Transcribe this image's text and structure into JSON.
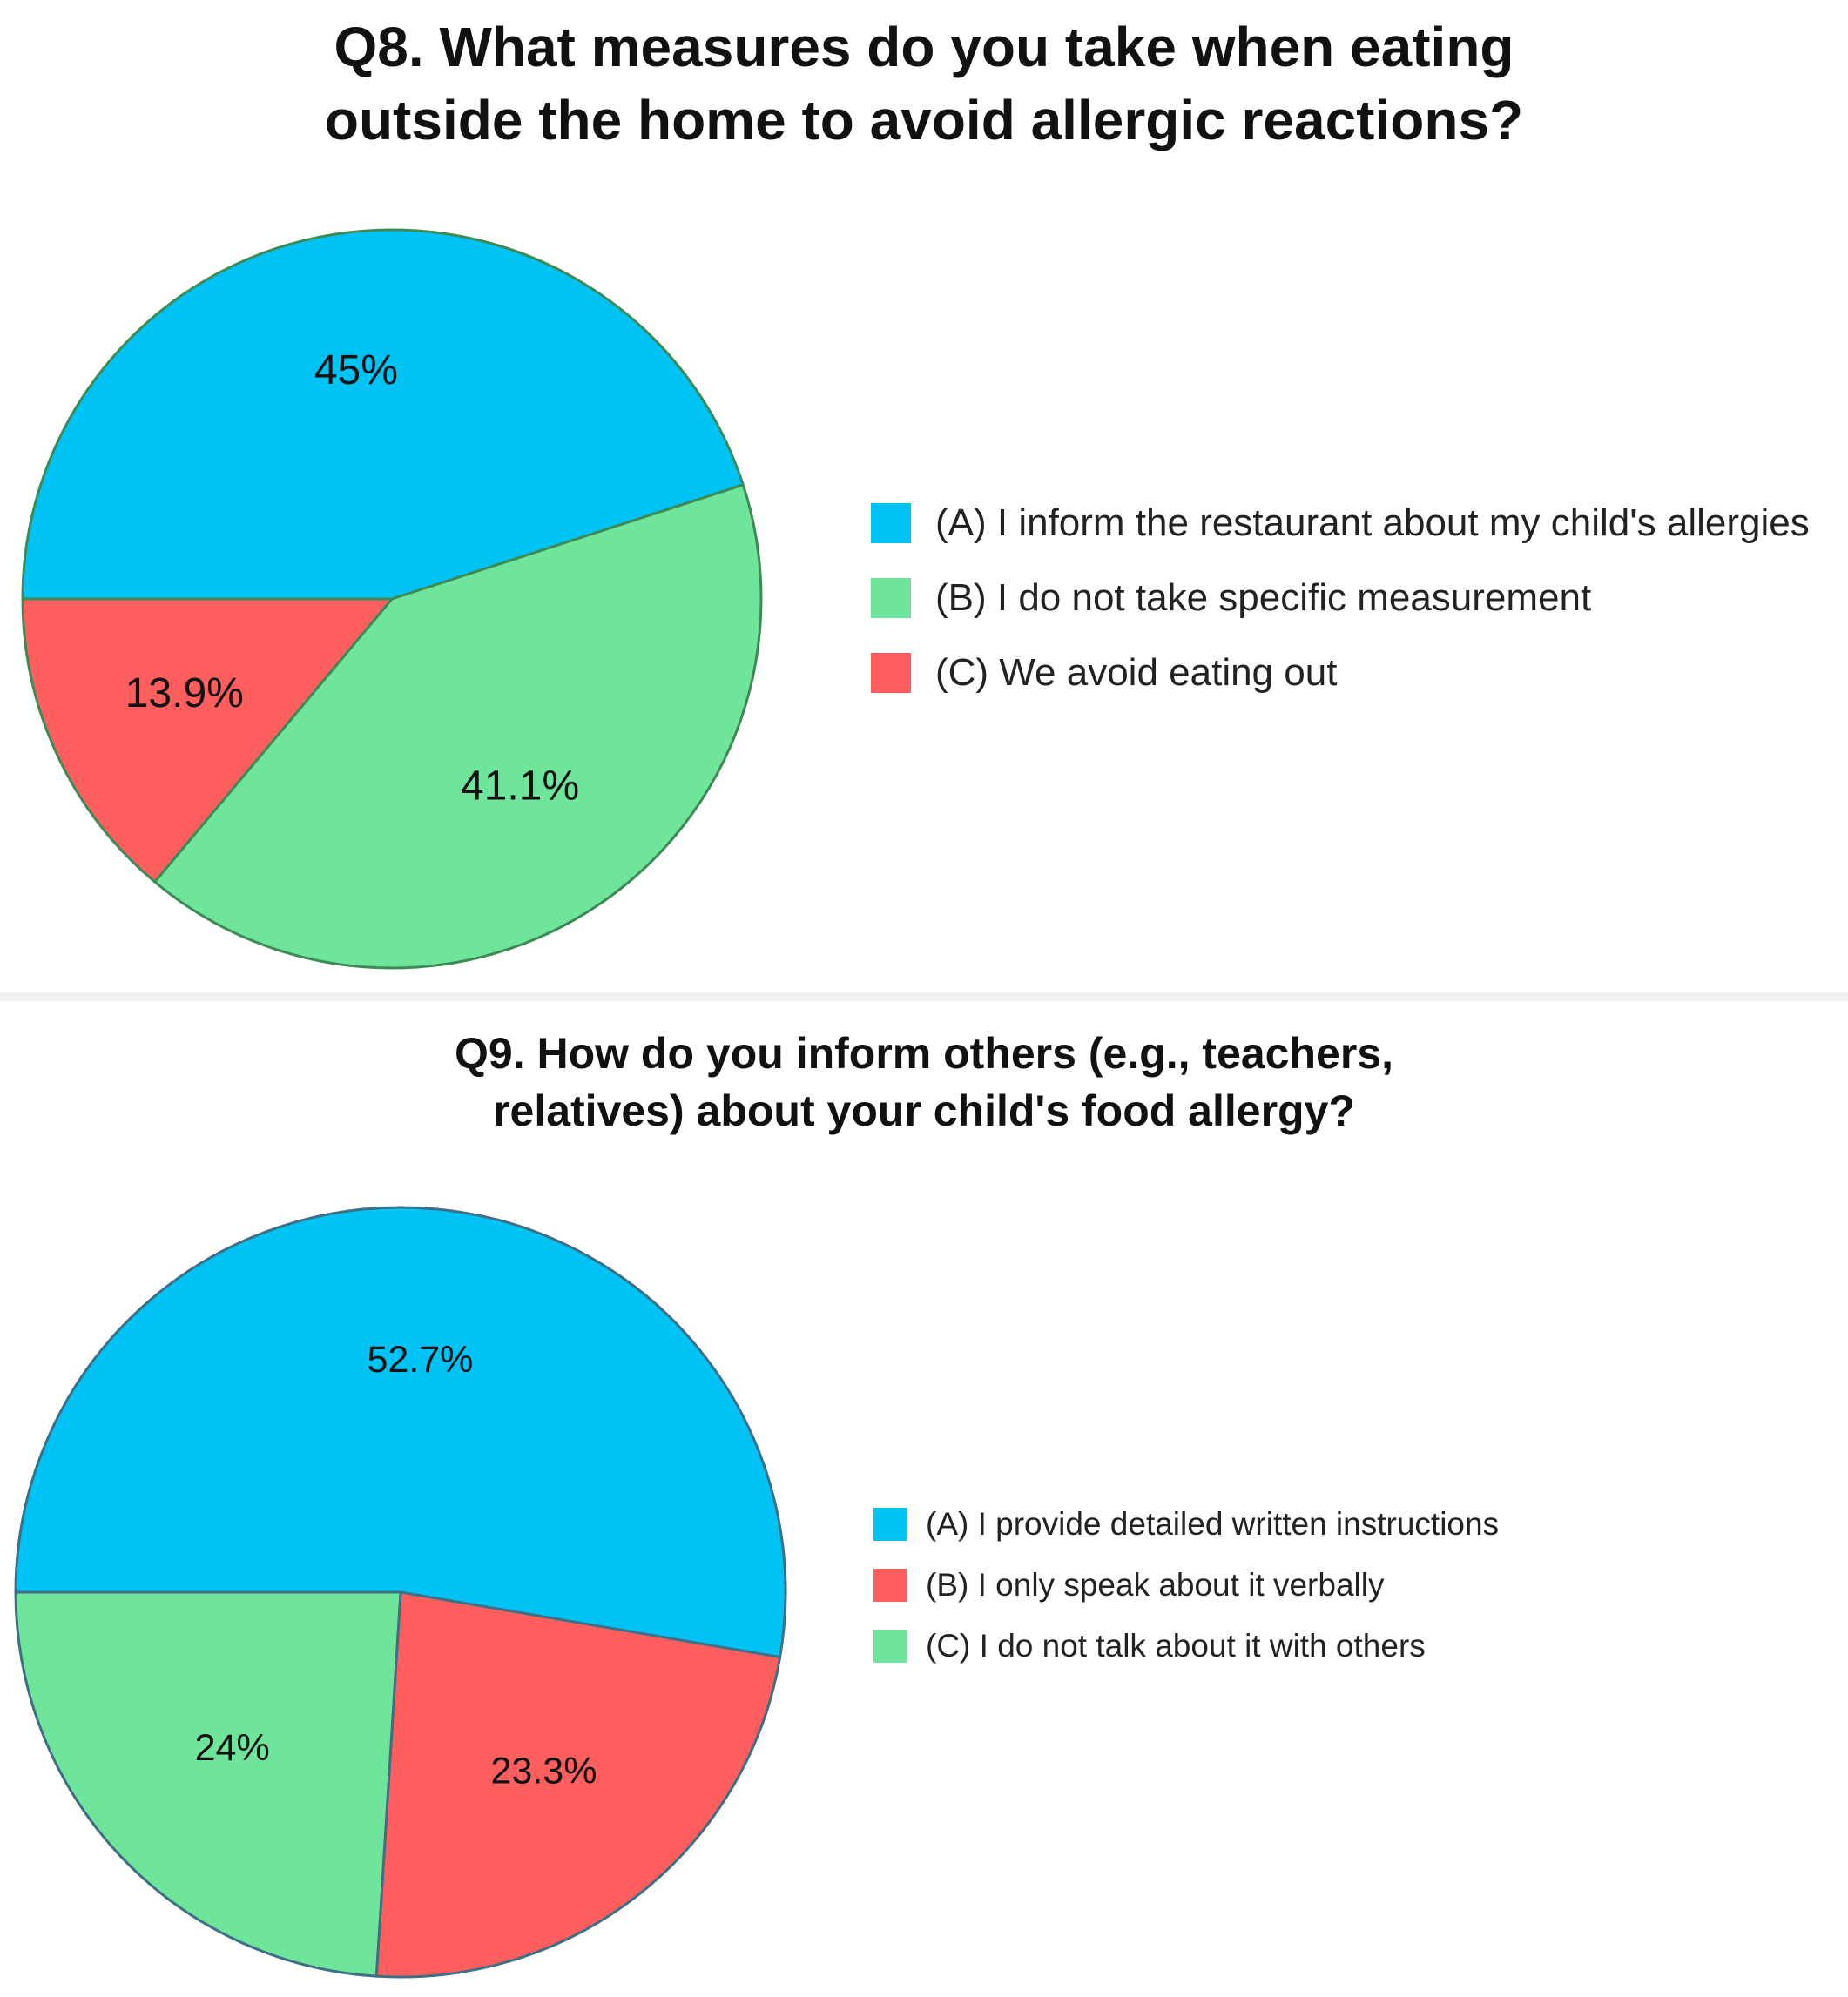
{
  "colors": {
    "blue": "#00c3f5",
    "green": "#6ee59a",
    "red": "#fe5e5e"
  },
  "chart_data": [
    {
      "type": "pie",
      "title": "Q8. What measures do you take when eating outside the home to avoid allergic reactions?",
      "title_lines": [
        "Q8. What measures do you take when eating",
        "outside the home to avoid allergic reactions?"
      ],
      "slices": [
        {
          "label": "(A) I inform the restaurant about my child's allergies",
          "value": 45,
          "display": "45%",
          "color": "#00c3f5"
        },
        {
          "label": "(B) I do not take specific measurement",
          "value": 41.1,
          "display": "41.1%",
          "color": "#6ee59a"
        },
        {
          "label": "(C) We avoid eating out",
          "value": 13.9,
          "display": "13.9%",
          "color": "#fe5e5e"
        }
      ],
      "legend_position": "right"
    },
    {
      "type": "pie",
      "title": "Q9. How do you inform others (e.g., teachers, relatives) about your child's food allergy?",
      "title_lines": [
        "Q9. How do you inform others (e.g., teachers,",
        "relatives) about your child's food allergy?"
      ],
      "slices": [
        {
          "label": "(A) I provide detailed written instructions",
          "value": 52.7,
          "display": "52.7%",
          "color": "#00c3f5"
        },
        {
          "label": "(B) I only speak about it verbally",
          "value": 23.3,
          "display": "23.3%",
          "color": "#fe5e5e"
        },
        {
          "label": "(C) I do not talk about it with others",
          "value": 24,
          "display": "24%",
          "color": "#6ee59a"
        }
      ],
      "legend_position": "right"
    }
  ]
}
